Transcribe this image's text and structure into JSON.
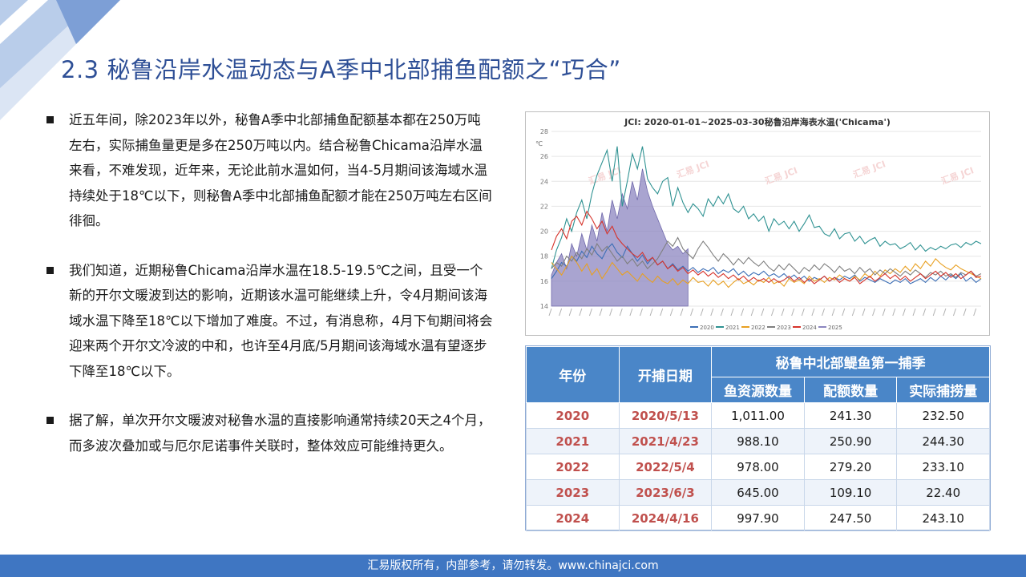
{
  "slide": {
    "title": "2.3 秘鲁沿岸水温动态与A季中北部捕鱼配额之“巧合”",
    "bullets": [
      "近五年间，除2023年以外，秘鲁A季中北部捕鱼配额基本都在250万吨左右，实际捕鱼量更是多在250万吨以内。结合秘鲁Chicama沿岸水温来看，不难发现，近年来，无论此前水温如何，当4-5月期间该海域水温持续处于18℃以下，则秘鲁A季中北部捕鱼配额才能在250万吨左右区间徘徊。",
      "我们知道，近期秘鲁Chicama沿岸水温在18.5-19.5℃之间，且受一个新的开尔文暖波到达的影响，近期该水温可能继续上升，令4月期间该海域水温下降至18℃以下增加了难度。不过，有消息称，4月下旬期间将会迎来两个开尔文冷波的中和，也许至4月底/5月期间该海域水温有望逐步下降至18℃以下。",
      "据了解，单次开尔文暖波对秘鲁水温的直接影响通常持续20天之4个月，而多波次叠加或与厄尔尼诺事件关联时，整体效应可能维持更久。"
    ],
    "footer": "汇易版权所有，内部参考，请勿转发。www.chinajci.com",
    "colors": {
      "title": "#2e4f96",
      "footer_bg": "#3f76c2",
      "table_header": "#4a86c8",
      "year_text": "#c0504d"
    }
  },
  "chart_data": {
    "type": "line",
    "title": "JCI: 2020-01-01~2025-03-30秘鲁沿岸海表水温('Chicama')",
    "ylabel": "℃",
    "ylim": [
      14,
      28
    ],
    "yticks": [
      14,
      16,
      18,
      20,
      22,
      24,
      26,
      28
    ],
    "grid": true,
    "legend": "bottom",
    "watermark": "汇易 JCI",
    "series": [
      {
        "name": "2020",
        "color": "#3d6fb6",
        "kind": "line",
        "values": [
          16.2,
          16.8,
          17.5,
          17.2,
          18.0,
          17.6,
          18.4,
          17.9,
          18.8,
          18.2,
          17.8,
          18.6,
          19.0,
          18.3,
          17.9,
          18.8,
          18.2,
          17.6,
          18.1,
          17.4,
          17.9,
          17.3,
          17.6,
          17.0,
          17.4,
          16.9,
          17.2,
          16.8,
          17.1,
          16.7,
          17.0,
          16.8,
          17.1,
          16.6,
          16.9,
          16.7,
          17.0,
          16.5,
          16.8,
          16.4,
          16.7,
          16.5,
          16.8,
          16.4,
          16.6,
          16.3,
          16.6,
          16.2,
          16.5,
          16.1,
          16.4,
          16.0,
          16.3,
          16.1,
          16.4,
          16.0,
          16.3,
          16.1,
          16.4,
          16.2,
          16.5,
          16.0,
          16.3,
          16.1,
          15.9,
          16.2,
          16.0,
          15.8,
          16.1,
          15.9,
          16.2,
          15.8,
          16.0,
          16.2,
          15.9,
          16.3,
          16.0,
          16.4,
          16.1,
          16.5,
          16.2,
          16.6,
          16.0,
          16.3,
          15.9,
          16.2
        ]
      },
      {
        "name": "2021",
        "color": "#2f9292",
        "kind": "line",
        "values": [
          17.0,
          18.5,
          19.5,
          21.0,
          20.0,
          21.5,
          22.5,
          21.0,
          23.0,
          24.5,
          25.5,
          26.5,
          24.0,
          26.8,
          22.0,
          24.0,
          26.2,
          25.0,
          26.8,
          24.2,
          23.5,
          23.0,
          24.0,
          24.3,
          22.0,
          23.5,
          22.3,
          21.5,
          22.2,
          21.8,
          21.2,
          22.6,
          22.0,
          22.8,
          22.2,
          23.0,
          21.8,
          21.5,
          22.0,
          21.0,
          21.4,
          20.8,
          21.2,
          20.0,
          21.0,
          20.5,
          20.8,
          20.2,
          20.8,
          20.0,
          20.6,
          21.3,
          20.3,
          20.4,
          19.8,
          19.6,
          20.2,
          19.4,
          19.8,
          19.9,
          19.2,
          19.6,
          19.0,
          19.3,
          19.5,
          18.8,
          19.2,
          18.9,
          19.0,
          18.6,
          18.8,
          19.1,
          18.5,
          18.9,
          18.4,
          18.7,
          18.5,
          18.8,
          18.6,
          18.9,
          19.0,
          18.7,
          19.1,
          18.9,
          19.2,
          19.0
        ]
      },
      {
        "name": "2022",
        "color": "#e8a022",
        "kind": "line",
        "values": [
          17.5,
          17.0,
          16.5,
          17.2,
          18.0,
          17.5,
          16.8,
          17.4,
          16.5,
          17.0,
          16.2,
          16.8,
          17.5,
          17.0,
          16.5,
          16.8,
          16.4,
          16.0,
          16.6,
          16.2,
          15.9,
          16.4,
          16.0,
          15.8,
          16.2,
          15.7,
          16.1,
          15.8,
          16.3,
          15.9,
          16.0,
          15.6,
          16.1,
          15.7,
          16.0,
          15.5,
          15.9,
          16.2,
          15.8,
          16.0,
          15.7,
          16.1,
          15.9,
          16.3,
          15.8,
          16.0,
          15.6,
          16.2,
          15.9,
          16.1,
          15.8,
          16.4,
          16.0,
          16.2,
          15.9,
          16.3,
          16.1,
          16.5,
          16.2,
          16.0,
          16.4,
          16.1,
          16.6,
          16.3,
          16.8,
          16.4,
          16.9,
          16.6,
          17.0,
          16.7,
          17.2,
          16.8,
          17.4,
          17.0,
          17.6,
          17.2,
          17.8,
          17.4,
          17.1,
          16.9,
          17.3,
          17.0,
          16.8,
          16.6,
          16.4,
          16.2
        ]
      },
      {
        "name": "2023",
        "color": "#7f7f7f",
        "kind": "line",
        "values": [
          17.0,
          17.5,
          17.2,
          18.0,
          17.6,
          18.3,
          17.8,
          18.6,
          18.1,
          19.0,
          18.4,
          18.8,
          18.2,
          17.6,
          18.0,
          17.4,
          17.8,
          17.2,
          17.6,
          17.0,
          17.4,
          17.8,
          18.5,
          19.2,
          18.8,
          19.5,
          18.6,
          18.2,
          17.8,
          18.6,
          19.2,
          18.7,
          18.1,
          17.6,
          18.2,
          17.8,
          17.3,
          17.8,
          17.4,
          17.9,
          17.5,
          17.2,
          17.6,
          17.1,
          16.8,
          17.3,
          16.9,
          17.4,
          17.0,
          16.6,
          17.1,
          16.8,
          17.3,
          16.9,
          17.4,
          17.1,
          16.7,
          17.2,
          16.8,
          17.0,
          16.6,
          17.1,
          16.7,
          17.0,
          16.5,
          16.9,
          16.6,
          17.0,
          16.7,
          16.4,
          16.8,
          16.5,
          16.9,
          16.6,
          16.3,
          16.7,
          16.5,
          16.8,
          16.4,
          16.6,
          16.3,
          16.7,
          16.5,
          16.8,
          16.4,
          16.6
        ]
      },
      {
        "name": "2024",
        "color": "#d6332b",
        "kind": "line",
        "values": [
          18.5,
          19.6,
          20.2,
          19.4,
          20.8,
          21.2,
          20.5,
          21.6,
          21.0,
          20.2,
          20.8,
          19.8,
          20.4,
          19.5,
          19.0,
          18.6,
          18.2,
          17.9,
          18.3,
          17.6,
          17.9,
          17.3,
          17.6,
          17.0,
          17.3,
          16.8,
          17.1,
          16.6,
          16.9,
          16.5,
          16.8,
          16.4,
          16.7,
          16.3,
          16.6,
          16.2,
          16.5,
          16.1,
          16.4,
          16.0,
          16.3,
          16.0,
          16.2,
          15.9,
          16.2,
          15.9,
          16.1,
          16.4,
          16.0,
          16.3,
          15.9,
          16.2,
          15.8,
          16.1,
          16.4,
          16.0,
          16.3,
          15.9,
          16.2,
          16.0,
          16.3,
          15.8,
          16.1,
          16.4,
          16.0,
          16.3,
          16.6,
          16.2,
          16.5,
          16.1,
          16.4,
          16.0,
          16.3,
          16.6,
          16.2,
          16.5,
          16.8,
          16.4,
          16.7,
          16.3,
          16.6,
          16.2,
          16.5,
          16.8,
          16.3,
          16.4
        ]
      },
      {
        "name": "2025",
        "color": "#8c86c0",
        "kind": "area",
        "values": [
          16.5,
          17.5,
          18.2,
          17.0,
          19.0,
          18.0,
          19.8,
          18.5,
          20.5,
          19.2,
          21.5,
          20.0,
          22.5,
          21.0,
          23.0,
          21.8,
          24.0,
          22.5,
          25.0,
          23.2,
          22.0,
          21.0,
          20.0,
          19.0,
          18.5,
          18.8,
          18.2,
          18.6
        ]
      }
    ]
  },
  "table": {
    "headers": {
      "year": "年份",
      "open_date": "开捕日期",
      "group": "秘鲁中北部鳀鱼第一捕季",
      "biomass": "鱼资源数量",
      "quota": "配额数量",
      "catch": "实际捕捞量"
    },
    "rows": [
      {
        "year": "2020",
        "date": "2020/5/13",
        "biomass": "1,011.00",
        "quota": "241.30",
        "catch": "232.50"
      },
      {
        "year": "2021",
        "date": "2021/4/23",
        "biomass": "988.10",
        "quota": "250.90",
        "catch": "244.30"
      },
      {
        "year": "2022",
        "date": "2022/5/4",
        "biomass": "978.00",
        "quota": "279.20",
        "catch": "233.10"
      },
      {
        "year": "2023",
        "date": "2023/6/3",
        "biomass": "645.00",
        "quota": "109.10",
        "catch": "22.40"
      },
      {
        "year": "2024",
        "date": "2024/4/16",
        "biomass": "997.90",
        "quota": "247.50",
        "catch": "243.10"
      }
    ]
  }
}
